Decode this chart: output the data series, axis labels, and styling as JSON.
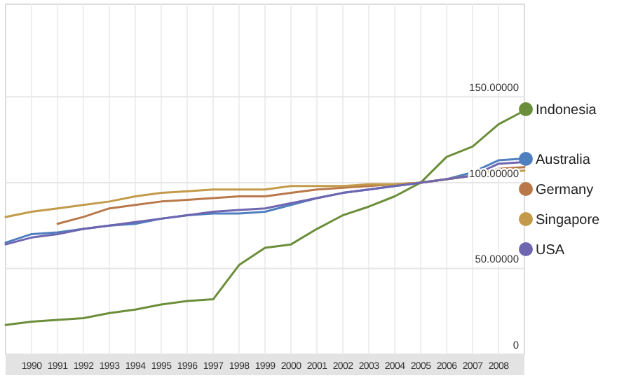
{
  "chart_data": {
    "type": "line",
    "x": [
      1989,
      1990,
      1991,
      1992,
      1993,
      1994,
      1995,
      1996,
      1997,
      1998,
      1999,
      2000,
      2001,
      2002,
      2003,
      2004,
      2005,
      2006,
      2007,
      2008,
      2009
    ],
    "series": [
      {
        "name": "Indonesia",
        "color": "#6b8e3a",
        "values": [
          17,
          19,
          20,
          21,
          24,
          26,
          29,
          31,
          32,
          52,
          62,
          64,
          73,
          81,
          86,
          92,
          100,
          115,
          121,
          134,
          142
        ]
      },
      {
        "name": "Australia",
        "color": "#4f7fbf",
        "values": [
          65,
          70,
          71,
          73,
          75,
          76,
          79,
          81,
          82,
          82,
          83,
          87,
          91,
          94,
          96,
          98,
          100,
          102,
          106,
          113,
          114
        ]
      },
      {
        "name": "Germany",
        "color": "#b8784a",
        "values": [
          null,
          null,
          76,
          80,
          85,
          87,
          89,
          90,
          91,
          92,
          92,
          94,
          96,
          97,
          98,
          99,
          100,
          102,
          104,
          108,
          109
        ]
      },
      {
        "name": "Singapore",
        "color": "#c29a4a",
        "values": [
          80,
          83,
          85,
          87,
          89,
          92,
          94,
          95,
          96,
          96,
          96,
          98,
          98,
          98,
          99,
          99,
          100,
          102,
          104,
          106,
          107
        ]
      },
      {
        "name": "USA",
        "color": "#6e66b0",
        "values": [
          64,
          68,
          70,
          73,
          75,
          77,
          79,
          81,
          83,
          84,
          85,
          88,
          91,
          94,
          96,
          98,
          100,
          102,
          104,
          111,
          112
        ]
      }
    ],
    "xlim": [
      1989,
      2009
    ],
    "xticks": [
      1990,
      1991,
      1992,
      1993,
      1994,
      1995,
      1996,
      1997,
      1998,
      1999,
      2000,
      2001,
      2002,
      2003,
      2004,
      2005,
      2006,
      2007,
      2008
    ],
    "ylim": [
      0,
      204
    ],
    "yticks": [
      0,
      {
        "value": 50,
        "label": "50.00000"
      },
      {
        "value": 100,
        "label": "100.00000"
      },
      {
        "value": 150,
        "label": "150.00000"
      }
    ],
    "grid": true,
    "legend": "right",
    "marker": "none",
    "line_style": "solid"
  }
}
